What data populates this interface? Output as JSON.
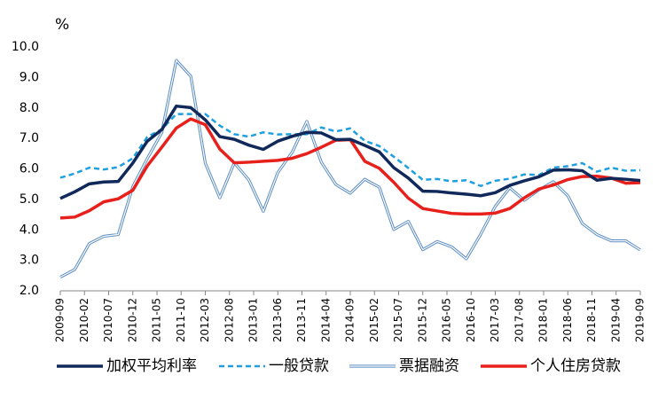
{
  "chart_data": {
    "type": "line",
    "y_label": "%",
    "x": [
      "2009-09",
      "2009-12",
      "2010-03",
      "2010-06",
      "2010-09",
      "2010-12",
      "2011-03",
      "2011-06",
      "2011-09",
      "2011-12",
      "2012-03",
      "2012-06",
      "2012-09",
      "2012-12",
      "2013-03",
      "2013-06",
      "2013-09",
      "2013-12",
      "2014-03",
      "2014-06",
      "2014-09",
      "2014-12",
      "2015-03",
      "2015-06",
      "2015-09",
      "2015-12",
      "2016-03",
      "2016-06",
      "2016-09",
      "2016-12",
      "2017-03",
      "2017-06",
      "2017-09",
      "2017-12",
      "2018-03",
      "2018-06",
      "2018-09",
      "2018-12",
      "2019-03",
      "2019-06",
      "2019-09"
    ],
    "xlim": [
      "2009-09",
      "2019-09"
    ],
    "xticks": [
      "2009-09",
      "2010-02",
      "2010-07",
      "2010-12",
      "2011-05",
      "2011-10",
      "2012-03",
      "2012-08",
      "2013-01",
      "2013-06",
      "2013-11",
      "2014-04",
      "2014-09",
      "2015-02",
      "2015-07",
      "2015-12",
      "2016-05",
      "2016-10",
      "2017-03",
      "2017-08",
      "2018-01",
      "2018-06",
      "2018-11",
      "2019-04",
      "2019-09"
    ],
    "ylim": [
      2,
      10
    ],
    "yticks": [
      {
        "value": 2,
        "label": "2.0"
      },
      {
        "value": 3,
        "label": "3.0"
      },
      {
        "value": 4,
        "label": "4.0"
      },
      {
        "value": 5,
        "label": "5.0"
      },
      {
        "value": 6,
        "label": "6.0"
      },
      {
        "value": 7,
        "label": "7.0"
      },
      {
        "value": 8,
        "label": "8.0"
      },
      {
        "value": 9,
        "label": "9.0"
      },
      {
        "value": 10,
        "label": "10.0"
      }
    ],
    "legend": "bottom",
    "series": [
      {
        "name": "加权平均利率",
        "color": "#10285a",
        "style": "solid",
        "values": [
          5.03,
          5.25,
          5.51,
          5.57,
          5.59,
          6.19,
          6.91,
          7.29,
          8.06,
          8.01,
          7.61,
          7.06,
          6.97,
          6.78,
          6.64,
          6.91,
          7.07,
          7.2,
          7.18,
          6.96,
          6.97,
          6.77,
          6.56,
          6.04,
          5.7,
          5.27,
          5.26,
          5.21,
          5.17,
          5.12,
          5.22,
          5.46,
          5.61,
          5.74,
          5.96,
          5.97,
          5.94,
          5.63,
          5.69,
          5.66,
          5.62
        ]
      },
      {
        "name": "一般贷款",
        "color": "#1e9fe0",
        "style": "dashed",
        "values": [
          5.71,
          5.85,
          6.04,
          5.98,
          6.06,
          6.35,
          7.05,
          7.3,
          7.8,
          7.8,
          7.8,
          7.42,
          7.14,
          7.06,
          7.2,
          7.13,
          7.14,
          7.14,
          7.36,
          7.23,
          7.33,
          6.92,
          6.75,
          6.4,
          6.03,
          5.64,
          5.67,
          5.59,
          5.63,
          5.44,
          5.61,
          5.68,
          5.82,
          5.8,
          6.04,
          6.09,
          6.19,
          5.91,
          6.04,
          5.94,
          5.96
        ]
      },
      {
        "name": "票据融资",
        "color": "#5a8cc4",
        "style": "double",
        "values": [
          2.45,
          2.7,
          3.55,
          3.79,
          3.85,
          5.42,
          6.34,
          7.19,
          9.56,
          9.04,
          6.19,
          5.05,
          6.2,
          5.64,
          4.61,
          5.88,
          6.55,
          7.56,
          6.22,
          5.49,
          5.2,
          5.66,
          5.4,
          4.01,
          4.28,
          3.35,
          3.62,
          3.44,
          3.05,
          3.86,
          4.77,
          5.38,
          4.97,
          5.31,
          5.58,
          5.12,
          4.21,
          3.85,
          3.64,
          3.64,
          3.34
        ]
      },
      {
        "name": "个人住房贷款",
        "color": "#e8201c",
        "style": "solid",
        "values": [
          4.39,
          4.42,
          4.63,
          4.92,
          5.02,
          5.3,
          6.1,
          6.71,
          7.34,
          7.64,
          7.45,
          6.65,
          6.2,
          6.22,
          6.25,
          6.28,
          6.35,
          6.5,
          6.71,
          6.94,
          6.96,
          6.25,
          6.02,
          5.56,
          5.04,
          4.7,
          4.62,
          4.54,
          4.52,
          4.52,
          4.55,
          4.7,
          5.05,
          5.34,
          5.47,
          5.65,
          5.75,
          5.76,
          5.7,
          5.53,
          5.55
        ]
      }
    ]
  }
}
